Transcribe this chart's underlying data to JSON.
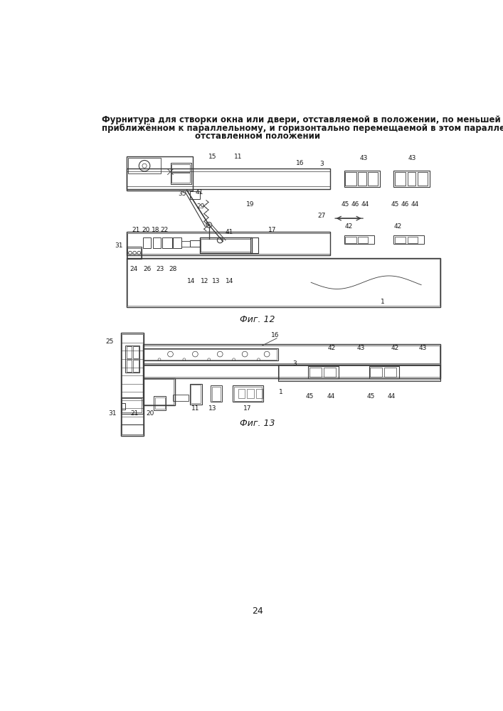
{
  "title_lines": [
    "Фурнитура для створки окна или двери, отставляемой в положении, по меньшей мере",
    "приближённом к параллельному, и горизонтально перемещаемой в этом параллельно-",
    "отставленном положении"
  ],
  "fig12_caption": "Фиг. 12",
  "fig13_caption": "Фиг. 13",
  "page_number": "24",
  "bg_color": "#ffffff",
  "line_color": "#3a3a3a",
  "text_color": "#1a1a1a"
}
